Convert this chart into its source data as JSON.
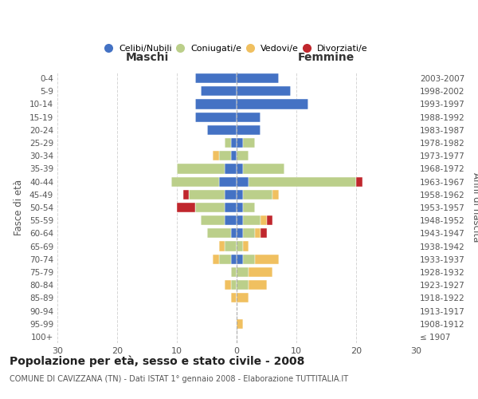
{
  "age_groups": [
    "100+",
    "95-99",
    "90-94",
    "85-89",
    "80-84",
    "75-79",
    "70-74",
    "65-69",
    "60-64",
    "55-59",
    "50-54",
    "45-49",
    "40-44",
    "35-39",
    "30-34",
    "25-29",
    "20-24",
    "15-19",
    "10-14",
    "5-9",
    "0-4"
  ],
  "birth_years": [
    "≤ 1907",
    "1908-1912",
    "1913-1917",
    "1918-1922",
    "1923-1927",
    "1928-1932",
    "1933-1937",
    "1938-1942",
    "1943-1947",
    "1948-1952",
    "1953-1957",
    "1958-1962",
    "1963-1967",
    "1968-1972",
    "1973-1977",
    "1978-1982",
    "1983-1987",
    "1988-1992",
    "1993-1997",
    "1998-2002",
    "2003-2007"
  ],
  "male": {
    "celibi": [
      0,
      0,
      0,
      0,
      0,
      0,
      1,
      0,
      1,
      2,
      2,
      2,
      3,
      2,
      1,
      1,
      5,
      7,
      7,
      6,
      7
    ],
    "coniugati": [
      0,
      0,
      0,
      0,
      1,
      1,
      2,
      2,
      4,
      4,
      5,
      6,
      8,
      8,
      2,
      1,
      0,
      0,
      0,
      0,
      0
    ],
    "vedovi": [
      0,
      0,
      0,
      1,
      1,
      0,
      1,
      1,
      0,
      0,
      0,
      0,
      0,
      0,
      1,
      0,
      0,
      0,
      0,
      0,
      0
    ],
    "divorziati": [
      0,
      0,
      0,
      0,
      0,
      0,
      0,
      0,
      0,
      0,
      3,
      1,
      0,
      0,
      0,
      0,
      0,
      0,
      0,
      0,
      0
    ]
  },
  "female": {
    "nubili": [
      0,
      0,
      0,
      0,
      0,
      0,
      1,
      0,
      1,
      1,
      1,
      1,
      2,
      1,
      0,
      1,
      4,
      4,
      12,
      9,
      7
    ],
    "coniugate": [
      0,
      0,
      0,
      0,
      2,
      2,
      2,
      1,
      2,
      3,
      2,
      5,
      18,
      7,
      2,
      2,
      0,
      0,
      0,
      0,
      0
    ],
    "vedove": [
      0,
      1,
      0,
      2,
      3,
      4,
      4,
      1,
      1,
      1,
      0,
      1,
      0,
      0,
      0,
      0,
      0,
      0,
      0,
      0,
      0
    ],
    "divorziate": [
      0,
      0,
      0,
      0,
      0,
      0,
      0,
      0,
      1,
      1,
      0,
      0,
      1,
      0,
      0,
      0,
      0,
      0,
      0,
      0,
      0
    ]
  },
  "colors": {
    "celibi_nubili": "#4472C4",
    "coniugati": "#BBCF8A",
    "vedovi": "#F0C060",
    "divorziati": "#C0272D"
  },
  "xlim": 30,
  "title": "Popolazione per età, sesso e stato civile - 2008",
  "subtitle": "COMUNE DI CAVIZZANA (TN) - Dati ISTAT 1° gennaio 2008 - Elaborazione TUTTITALIA.IT",
  "ylabel_left": "Fasce di età",
  "ylabel_right": "Anni di nascita",
  "xlabel_left": "Maschi",
  "xlabel_right": "Femmine",
  "bg_color": "#FFFFFF",
  "grid_color": "#CCCCCC",
  "legend_labels": [
    "Celibi/Nubili",
    "Coniugati/e",
    "Vedovi/e",
    "Divorziati/e"
  ]
}
